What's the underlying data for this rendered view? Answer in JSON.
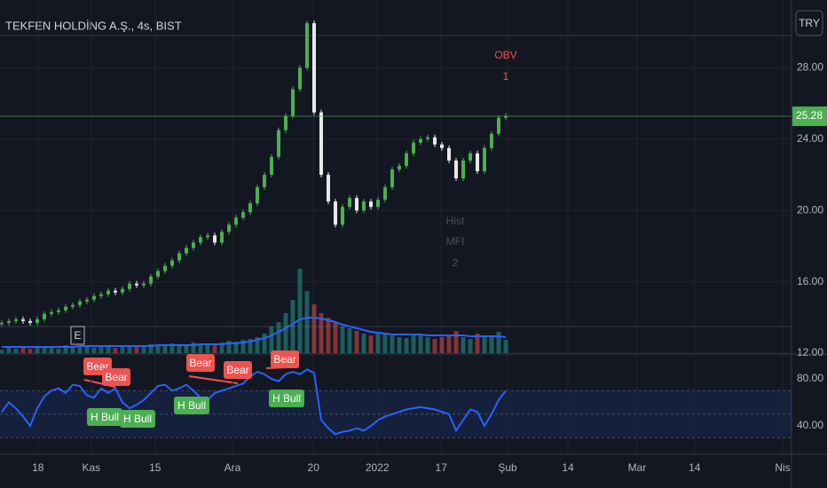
{
  "chart_data": {
    "type": "candlestick",
    "title": "TEKFEN HOLDİNG A.Ş., 4s, BIST",
    "currency": "TRY",
    "last_price": 25.28,
    "up_color": "#4caf50",
    "down_color": "#e8e8e8",
    "ylim": [
      12,
      31.8
    ],
    "yticks": [
      {
        "value": 12,
        "label": "12.00"
      },
      {
        "value": 16,
        "label": "16.00"
      },
      {
        "value": 20,
        "label": "20.00"
      },
      {
        "value": 24,
        "label": "24.00"
      },
      {
        "value": 28,
        "label": "28.00"
      }
    ],
    "xlim": [
      -0.25,
      111.25
    ],
    "xticks": [
      {
        "value": 5.1,
        "label": "18"
      },
      {
        "value": 12.6,
        "label": "Kas"
      },
      {
        "value": 21.6,
        "label": "15"
      },
      {
        "value": 32.5,
        "label": "Ara"
      },
      {
        "value": 43.9,
        "label": "20"
      },
      {
        "value": 52.9,
        "label": "2022"
      },
      {
        "value": 61.9,
        "label": "17"
      },
      {
        "value": 71.25,
        "label": "Şub"
      },
      {
        "value": 79.75,
        "label": "14"
      },
      {
        "value": 89.5,
        "label": "Mar"
      },
      {
        "value": 97.6,
        "label": "14"
      },
      {
        "value": 110,
        "label": "Nis"
      }
    ],
    "values": [
      13.7,
      13.8,
      13.9,
      13.8,
      13.7,
      13.9,
      14.2,
      14.3,
      14.4,
      14.6,
      14.7,
      14.9,
      15.0,
      15.2,
      15.3,
      15.5,
      15.4,
      15.6,
      15.9,
      15.8,
      15.9,
      16.3,
      16.6,
      16.9,
      17.2,
      17.6,
      17.9,
      18.2,
      18.5,
      18.6,
      18.2,
      18.8,
      19.2,
      19.6,
      19.9,
      20.4,
      21.3,
      22.0,
      23.0,
      24.5,
      25.3,
      26.8,
      28.0,
      30.5,
      25.5,
      22.0,
      20.5,
      19.2,
      20.2,
      20.7,
      20.0,
      20.5,
      20.2,
      20.6,
      21.3,
      22.3,
      22.5,
      23.2,
      23.8,
      24.0,
      24.1,
      23.7,
      23.5,
      22.8,
      21.8,
      22.8,
      23.2,
      22.2,
      23.5,
      24.3,
      25.2,
      25.3
    ],
    "y2lim": [
      0,
      100
    ],
    "volume": [
      4,
      6,
      5,
      8,
      5,
      6,
      7,
      6,
      5,
      9,
      6,
      7,
      8,
      6,
      7,
      8,
      6,
      7,
      9,
      8,
      7,
      10,
      9,
      8,
      11,
      10,
      9,
      12,
      10,
      11,
      9,
      12,
      14,
      13,
      15,
      16,
      18,
      22,
      30,
      35,
      45,
      60,
      95,
      70,
      55,
      45,
      40,
      35,
      30,
      28,
      25,
      22,
      20,
      24,
      22,
      20,
      18,
      17,
      22,
      20,
      18,
      16,
      18,
      20,
      25,
      18,
      16,
      22,
      18,
      20,
      24,
      15
    ],
    "volume_ma": [
      7,
      7,
      7,
      7,
      7,
      7,
      7,
      7,
      7,
      7,
      7,
      8,
      8,
      8,
      8,
      8,
      8,
      8,
      8,
      8,
      8,
      8,
      9,
      9,
      9,
      9,
      9,
      9,
      10,
      10,
      10,
      10,
      11,
      11,
      12,
      13,
      15,
      17,
      20,
      24,
      28,
      33,
      38,
      40,
      40,
      39,
      37,
      35,
      32,
      30,
      28,
      26,
      24,
      23,
      22,
      21,
      21,
      21,
      21,
      21,
      20,
      20,
      20,
      20,
      20,
      20,
      19,
      19,
      19,
      19,
      19,
      18
    ],
    "rsi": {
      "color": "#2962ff",
      "ylim": [
        17.4,
        100.4
      ],
      "yticks": [
        {
          "value": 40,
          "label": "40.00"
        },
        {
          "value": 80,
          "label": "80.00"
        }
      ],
      "bands": [
        30,
        50,
        70
      ],
      "values": [
        52,
        60,
        55,
        48,
        40,
        55,
        65,
        70,
        72,
        68,
        75,
        74,
        66,
        64,
        72,
        68,
        72,
        60,
        55,
        58,
        62,
        68,
        74,
        75,
        70,
        72,
        75,
        70,
        64,
        62,
        68,
        70,
        72,
        74,
        76,
        82,
        86,
        84,
        80,
        78,
        84,
        86,
        84,
        88,
        85,
        45,
        38,
        33,
        35,
        36,
        38,
        36,
        40,
        45,
        48,
        50,
        52,
        54,
        55,
        56,
        55,
        54,
        52,
        50,
        36,
        45,
        54,
        52,
        40,
        50,
        62,
        70
      ]
    },
    "signals": [
      "Bear",
      "Bear",
      "Bear",
      "Bear",
      "Bear",
      "H Bull",
      "H Bull",
      "H Bull",
      "H Bull"
    ],
    "annotations": [
      "OBV",
      "1",
      "Hist",
      "MFI",
      "2",
      "E"
    ]
  }
}
